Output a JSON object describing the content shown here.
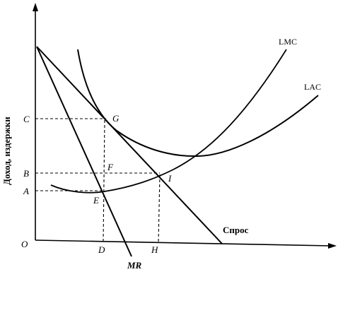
{
  "axes": {
    "y_title": "Доход, издержки",
    "origin": "O"
  },
  "curves": {
    "lmc": "LMC",
    "lac": "LAC",
    "demand": "Спрос",
    "mr": "MR"
  },
  "points": {
    "g": "G",
    "f": "F",
    "i": "I",
    "e": "E"
  },
  "y_ticks": {
    "c": "C",
    "b": "B",
    "a": "A"
  },
  "x_ticks": {
    "d": "D",
    "h": "H"
  }
}
